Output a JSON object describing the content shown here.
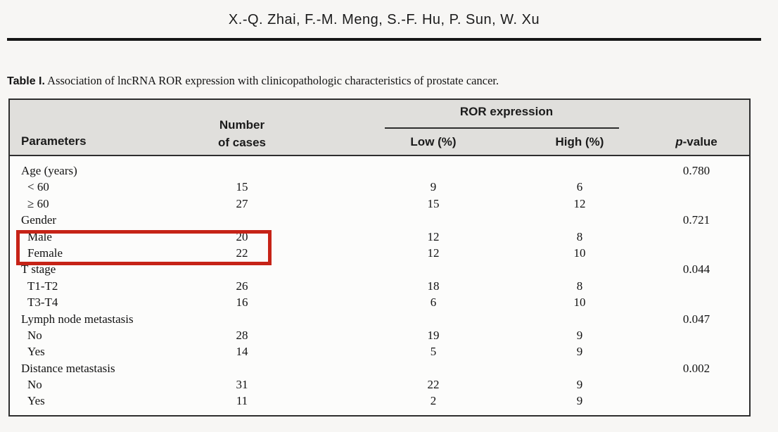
{
  "header": {
    "authors": "X.-Q. Zhai, F.-M. Meng, S.-F. Hu, P. Sun, W. Xu"
  },
  "caption": {
    "label": "Table I.",
    "text": " Association of lncRNA ROR expression with clinicopathologic characteristics of prostate cancer."
  },
  "table": {
    "headers": {
      "parameters": "Parameters",
      "cases_line1": "Number",
      "cases_line2": "of cases",
      "ror_group": "ROR expression",
      "low": "Low (%)",
      "high": "High (%)",
      "p_italic": "p",
      "p_rest": "-value"
    },
    "rows": [
      {
        "parameter": "Age (years)",
        "cases": "",
        "low": "",
        "high": "",
        "p": "0.780",
        "indent": false,
        "highlighted": false
      },
      {
        "parameter": "< 60",
        "cases": "15",
        "low": "9",
        "high": "6",
        "p": "",
        "indent": true,
        "highlighted": false
      },
      {
        "parameter": "≥ 60",
        "cases": "27",
        "low": "15",
        "high": "12",
        "p": "",
        "indent": true,
        "highlighted": false
      },
      {
        "parameter": "Gender",
        "cases": "",
        "low": "",
        "high": "",
        "p": "0.721",
        "indent": false,
        "highlighted": false
      },
      {
        "parameter": "Male",
        "cases": "20",
        "low": "12",
        "high": "8",
        "p": "",
        "indent": true,
        "highlighted": true
      },
      {
        "parameter": "Female",
        "cases": "22",
        "low": "12",
        "high": "10",
        "p": "",
        "indent": true,
        "highlighted": true
      },
      {
        "parameter": "T stage",
        "cases": "",
        "low": "",
        "high": "",
        "p": "0.044",
        "indent": false,
        "highlighted": false
      },
      {
        "parameter": "T1-T2",
        "cases": "26",
        "low": "18",
        "high": "8",
        "p": "",
        "indent": true,
        "highlighted": false
      },
      {
        "parameter": "T3-T4",
        "cases": "16",
        "low": "6",
        "high": "10",
        "p": "",
        "indent": true,
        "highlighted": false
      },
      {
        "parameter": "Lymph node metastasis",
        "cases": "",
        "low": "",
        "high": "",
        "p": "0.047",
        "indent": false,
        "highlighted": false
      },
      {
        "parameter": "No",
        "cases": "28",
        "low": "19",
        "high": "9",
        "p": "",
        "indent": true,
        "highlighted": false
      },
      {
        "parameter": "Yes",
        "cases": "14",
        "low": "5",
        "high": "9",
        "p": "",
        "indent": true,
        "highlighted": false
      },
      {
        "parameter": "Distance metastasis",
        "cases": "",
        "low": "",
        "high": "",
        "p": "0.002",
        "indent": false,
        "highlighted": false
      },
      {
        "parameter": "No",
        "cases": "31",
        "low": "22",
        "high": "9",
        "p": "",
        "indent": true,
        "highlighted": false
      },
      {
        "parameter": "Yes",
        "cases": "11",
        "low": "2",
        "high": "9",
        "p": "",
        "indent": true,
        "highlighted": false
      }
    ]
  },
  "annotations": {
    "highlight_color": "#c62317",
    "highlighted_rows": [
      "Male",
      "Female"
    ]
  },
  "colors": {
    "page_background": "#f7f6f4",
    "table_header_background": "#e0dfdc",
    "table_body_background": "#fcfcfb",
    "border": "#2e2e2e",
    "rule": "#161616"
  }
}
